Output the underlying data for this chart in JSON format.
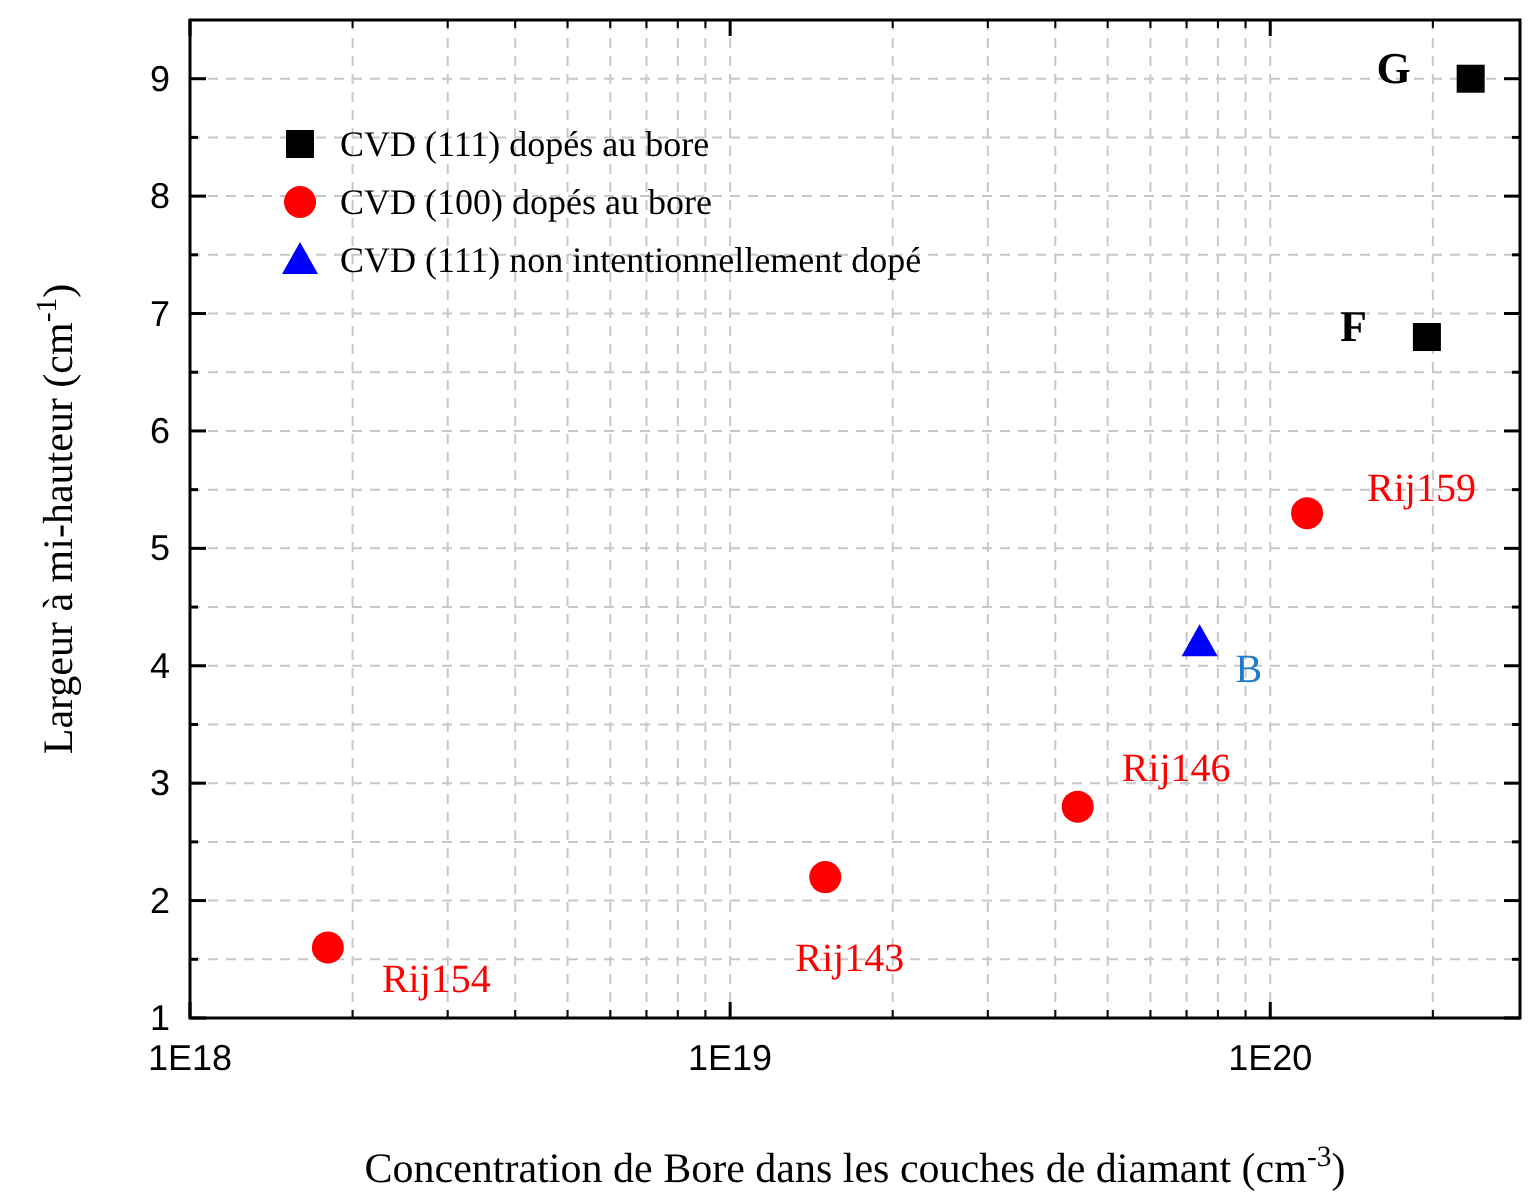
{
  "chart_data": {
    "type": "scatter",
    "xlabel": "Concentration de Bore dans les couches de diamant (cm$^{-3}$)",
    "ylabel": "Largeur à mi-hauteur (cm$^{-1}$)",
    "log": "x",
    "xlim": [
      1e+18,
      2.9e+20
    ],
    "ylim": [
      1,
      9.5
    ],
    "xticks": [
      {
        "value": 1e+18,
        "label": "1E18"
      },
      {
        "value": 1e+19,
        "label": "1E19"
      },
      {
        "value": 1e+20,
        "label": "1E20"
      }
    ],
    "yticks": [
      1,
      {
        "value": 1.5,
        "label": null
      },
      2,
      {
        "value": 2.5,
        "label": null
      },
      3,
      {
        "value": 3.5,
        "label": null
      },
      4,
      {
        "value": 4.5,
        "label": null
      },
      5,
      {
        "value": 5.5,
        "label": null
      },
      6,
      {
        "value": 6.5,
        "label": null
      },
      7,
      {
        "value": 7.5,
        "label": null
      },
      8,
      {
        "value": 8.5,
        "label": null
      },
      9
    ],
    "grid": true,
    "legend": "top left",
    "series": [
      {
        "name": "CVD (111) dopés au bore",
        "color": "#000000",
        "marker": "square",
        "x": [
          2.35e+20,
          1.95e+20
        ],
        "values": [
          9,
          6.8
        ]
      },
      {
        "name": "CVD (100) dopés au bore",
        "color": "#ff0000",
        "marker": "circle",
        "x": [
          1.8e+18,
          1.5e+19,
          4.4e+19,
          1.17e+20
        ],
        "values": [
          1.6,
          2.2,
          2.8,
          5.3
        ]
      },
      {
        "name": "CVD (111) non intentionnellement dopé",
        "color": "#0000ff",
        "marker": "triangle",
        "x": [
          7.4e+19
        ],
        "values": [
          4.2
        ]
      }
    ],
    "annotations": [
      {
        "text": "G",
        "x": 2.35e+20,
        "y": 9
      },
      {
        "text": "F",
        "x": 1.95e+20,
        "y": 6.8
      },
      {
        "text": "Rij154",
        "x": 1.8e+18,
        "y": 1.6
      },
      {
        "text": "Rij143",
        "x": 1.5e+19,
        "y": 2.2
      },
      {
        "text": "Rij146",
        "x": 4.4e+19,
        "y": 2.8
      },
      {
        "text": "Rij159",
        "x": 1.17e+20,
        "y": 5.3
      },
      {
        "text": "B",
        "x": 7.4e+19,
        "y": 4.2
      }
    ]
  }
}
